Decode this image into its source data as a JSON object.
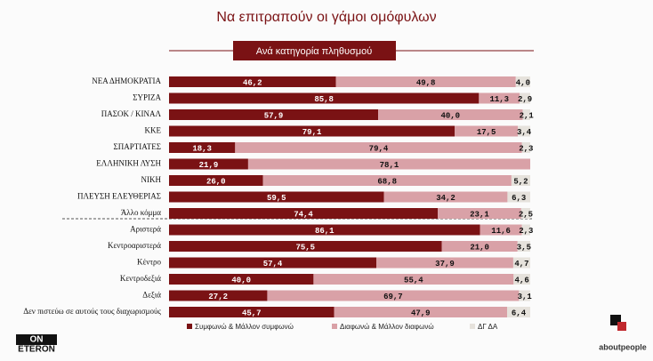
{
  "chart_data": {
    "type": "stacked_bar_horizontal",
    "title": "Να επιτραπούν οι γάμοι ομόφυλων",
    "subtitle": "Ανά κατηγορία πληθυσμού",
    "categories": [
      "ΝΕΑ ΔΗΜΟΚΡΑΤΙΑ",
      "ΣΥΡΙΖΑ",
      "ΠΑΣΟΚ / ΚΙΝΑΛ",
      "ΚΚΕ",
      "ΣΠΑΡΤΙΑΤΕΣ",
      "ΕΛΛΗΝΙΚΗ ΛΥΣΗ",
      "ΝΙΚΗ",
      "ΠΛΕΥΣΗ ΕΛΕΥΘΕΡΙΑΣ",
      "Άλλο κόμμα",
      "Αριστερά",
      "Κεντροαριστερά",
      "Κέντρο",
      "Κεντροδεξιά",
      "Δεξιά",
      "Δεν πιστεύω σε αυτούς τους διαχωρισμούς"
    ],
    "xlim": [
      0,
      100
    ],
    "legend": "bottom",
    "series": [
      {
        "name": "Συμφωνώ & Μάλλον συμφωνώ",
        "color": "#7a1214",
        "values": [
          46.2,
          85.8,
          57.9,
          79.1,
          18.3,
          21.9,
          26.0,
          59.5,
          74.4,
          86.1,
          75.5,
          57.4,
          40.0,
          27.2,
          45.7
        ],
        "value_labels": [
          "46,2",
          "85,8",
          "57,9",
          "79,1",
          "18,3",
          "21,9",
          "26,0",
          "59,5",
          "74,4",
          "86,1",
          "75,5",
          "57,4",
          "40,0",
          "27,2",
          "45,7"
        ]
      },
      {
        "name": "Διαφωνώ & Μάλλον διαφωνώ",
        "color": "#d9a1a7",
        "values": [
          49.8,
          11.3,
          40.0,
          17.5,
          79.4,
          78.1,
          68.8,
          34.2,
          23.1,
          11.6,
          21.0,
          37.9,
          55.4,
          69.7,
          47.9
        ],
        "value_labels": [
          "49,8",
          "11,3",
          "40,0",
          "17,5",
          "79,4",
          "78,1",
          "68,8",
          "34,2",
          "23,1",
          "11,6",
          "21,0",
          "37,9",
          "55,4",
          "69,7",
          "47,9"
        ]
      },
      {
        "name": "ΔΓ ΔΑ",
        "color": "#e6e2dc",
        "values": [
          4.0,
          2.9,
          2.1,
          3.4,
          2.3,
          null,
          5.2,
          6.3,
          2.5,
          2.3,
          3.5,
          4.7,
          4.6,
          3.1,
          6.4
        ],
        "value_labels": [
          "4,0",
          "2,9",
          "2,1",
          "3,4",
          "2,3",
          null,
          "5,2",
          "6,3",
          "2,5",
          "2,3",
          "3,5",
          "4,7",
          "4,6",
          "3,1",
          "6,4"
        ]
      }
    ]
  },
  "logos": {
    "left_top": "ON",
    "left_bottom": "ETERON",
    "right": "aboutpeople"
  }
}
